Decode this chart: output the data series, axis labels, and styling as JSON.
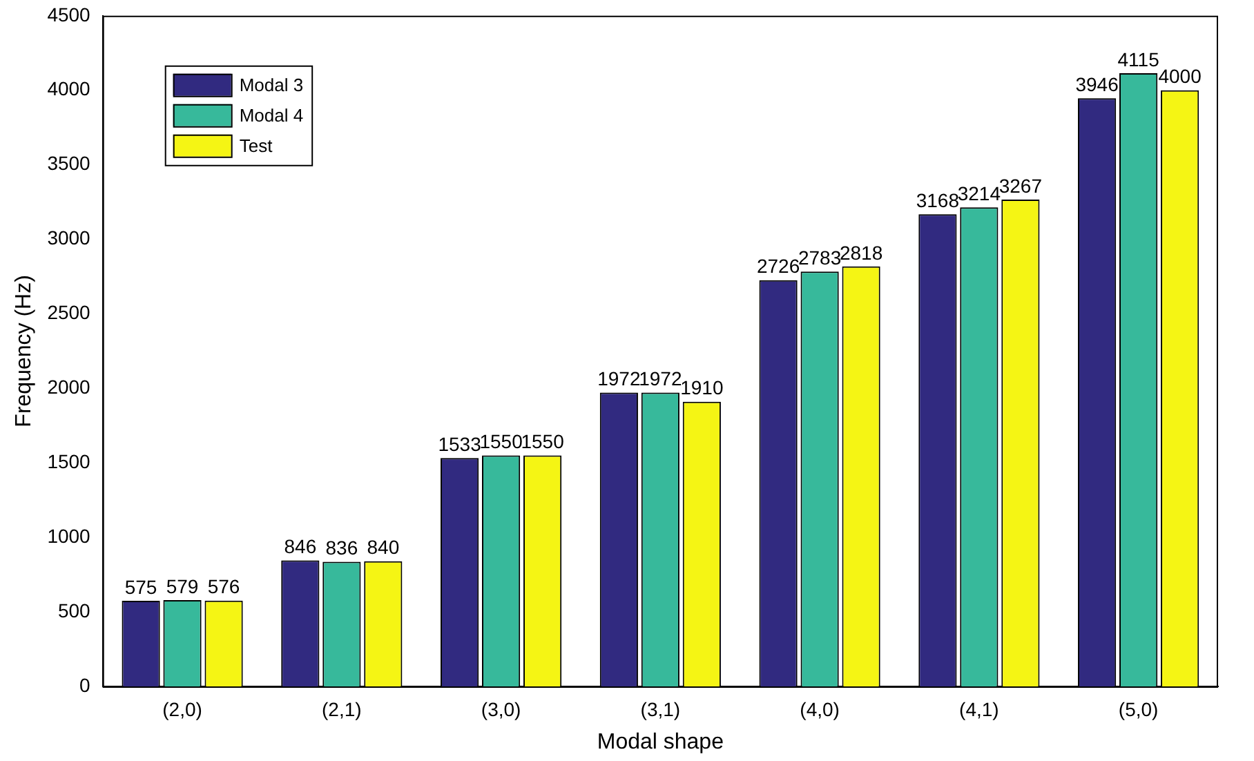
{
  "chart_data": {
    "type": "bar",
    "xlabel": "Modal shape",
    "ylabel": "Frequency (Hz)",
    "categories": [
      "(2,0)",
      "(2,1)",
      "(3,0)",
      "(3,1)",
      "(4,0)",
      "(4,1)",
      "(5,0)"
    ],
    "series": [
      {
        "name": "Modal 3",
        "color": "#312a80",
        "values": [
          575,
          846,
          1533,
          1972,
          2726,
          3168,
          3946
        ]
      },
      {
        "name": "Modal 4",
        "color": "#37b99b",
        "values": [
          579,
          836,
          1550,
          1972,
          2783,
          3214,
          4115
        ]
      },
      {
        "name": "Test",
        "color": "#f5f514",
        "values": [
          576,
          840,
          1550,
          1910,
          2818,
          3267,
          4000
        ]
      }
    ],
    "ylim": [
      0,
      4500
    ],
    "yticks": [
      0,
      500,
      1000,
      1500,
      2000,
      2500,
      3000,
      3500,
      4000,
      4500
    ],
    "grid": false,
    "legend": "top left",
    "data_labels": true
  }
}
